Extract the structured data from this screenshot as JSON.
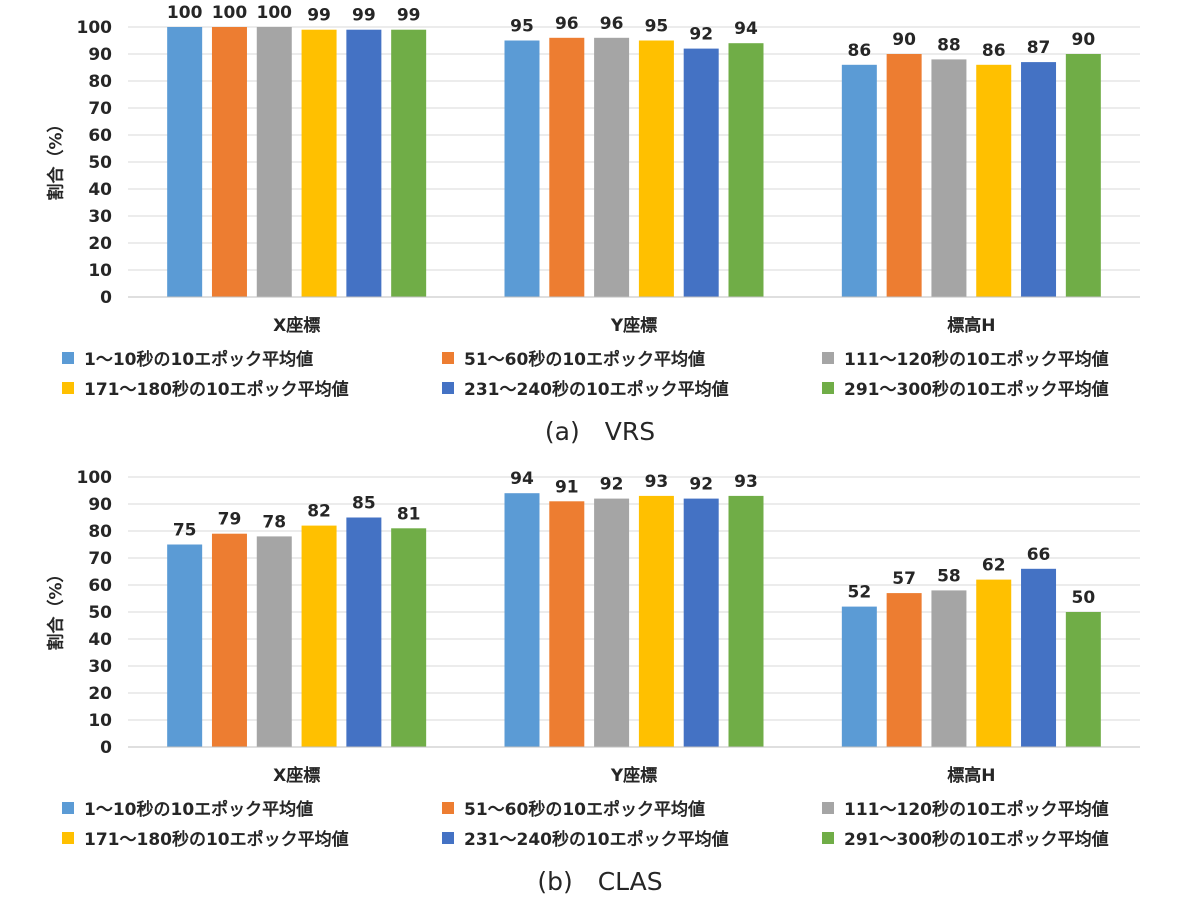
{
  "series_names": [
    "1～10秒の10エポック平均値",
    "51～60秒の10エポック平均値",
    "111～120秒の10エポック平均値",
    "171～180秒の10エポック平均値",
    "231～240秒の10エポック平均値",
    "291～300秒の10エポック平均値"
  ],
  "series_colors": [
    "#5b9bd5",
    "#ed7d31",
    "#a5a5a5",
    "#ffc000",
    "#4472c4",
    "#70ad47"
  ],
  "chart_data": [
    {
      "type": "bar",
      "caption": "(a)　VRS",
      "ylabel": "割合（%）",
      "categories": [
        "X座標",
        "Y座標",
        "標高H"
      ],
      "ylim": [
        0,
        100
      ],
      "yticks": [
        0,
        10,
        20,
        30,
        40,
        50,
        60,
        70,
        80,
        90,
        100
      ],
      "grid": true,
      "legend_position": "bottom",
      "series": [
        {
          "name": "1～10秒の10エポック平均値",
          "values": [
            100,
            95,
            86
          ]
        },
        {
          "name": "51～60秒の10エポック平均値",
          "values": [
            100,
            96,
            90
          ]
        },
        {
          "name": "111～120秒の10エポック平均値",
          "values": [
            100,
            96,
            88
          ]
        },
        {
          "name": "171～180秒の10エポック平均値",
          "values": [
            99,
            95,
            86
          ]
        },
        {
          "name": "231～240秒の10エポック平均値",
          "values": [
            99,
            92,
            87
          ]
        },
        {
          "name": "291～300秒の10エポック平均値",
          "values": [
            99,
            94,
            90
          ]
        }
      ]
    },
    {
      "type": "bar",
      "caption": "(b)　CLAS",
      "ylabel": "割合（%）",
      "categories": [
        "X座標",
        "Y座標",
        "標高H"
      ],
      "ylim": [
        0,
        100
      ],
      "yticks": [
        0,
        10,
        20,
        30,
        40,
        50,
        60,
        70,
        80,
        90,
        100
      ],
      "grid": true,
      "legend_position": "bottom",
      "series": [
        {
          "name": "1～10秒の10エポック平均値",
          "values": [
            75,
            94,
            52
          ]
        },
        {
          "name": "51～60秒の10エポック平均値",
          "values": [
            79,
            91,
            57
          ]
        },
        {
          "name": "111～120秒の10エポック平均値",
          "values": [
            78,
            92,
            58
          ]
        },
        {
          "name": "171～180秒の10エポック平均値",
          "values": [
            82,
            93,
            62
          ]
        },
        {
          "name": "231～240秒の10エポック平均値",
          "values": [
            85,
            92,
            66
          ]
        },
        {
          "name": "291～300秒の10エポック平均値",
          "values": [
            81,
            93,
            50
          ]
        }
      ]
    }
  ]
}
